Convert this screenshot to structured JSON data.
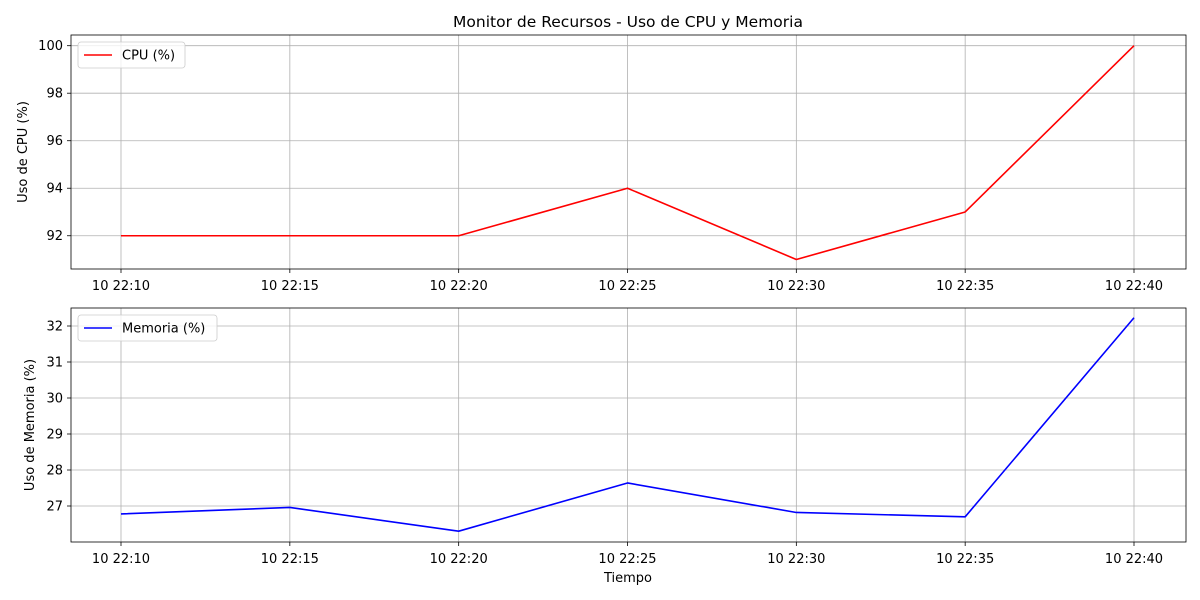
{
  "chart_data": {
    "type": "line",
    "title": "Monitor de Recursos - Uso de CPU y Memoria",
    "xlabel": "Tiempo",
    "categories": [
      "10 22:10",
      "10 22:15",
      "10 22:20",
      "10 22:25",
      "10 22:30",
      "10 22:35",
      "10 22:40"
    ],
    "grid": true,
    "panels": [
      {
        "ylabel": "Uso de CPU (%)",
        "ylim": [
          90.6,
          100.45
        ],
        "yticks": [
          92,
          94,
          96,
          98,
          100
        ],
        "legend_position": "upper-left",
        "series": [
          {
            "name": "CPU (%)",
            "color": "#ff0000",
            "values": [
              92,
              92,
              92,
              94,
              91,
              93,
              100
            ]
          }
        ]
      },
      {
        "ylabel": "Uso de Memoria (%)",
        "ylim": [
          26.0,
          32.5
        ],
        "yticks": [
          27,
          28,
          29,
          30,
          31,
          32
        ],
        "legend_position": "upper-left",
        "series": [
          {
            "name": "Memoria (%)",
            "color": "#0000ff",
            "values": [
              26.78,
              26.96,
              26.3,
              27.64,
              26.82,
              26.7,
              32.23
            ]
          }
        ]
      }
    ]
  }
}
